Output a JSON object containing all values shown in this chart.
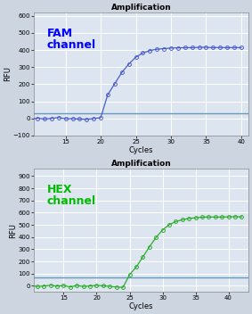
{
  "fam": {
    "title": "Amplification",
    "label": "FAM\nchannel",
    "label_color": "#0000FF",
    "line_color": "#4455CC",
    "marker_color": "#4455CC",
    "threshold_color": "#6699BB",
    "threshold_y": 28,
    "xlim": [
      10.5,
      41
    ],
    "ylim": [
      -100,
      620
    ],
    "xticks": [
      15,
      20,
      25,
      30,
      35,
      40
    ],
    "yticks": [
      -100,
      0,
      100,
      200,
      300,
      400,
      500,
      600
    ],
    "xlabel": "Cycles",
    "ylabel": "RFU",
    "sigmoid_midpoint": 22.0,
    "sigmoid_slope": 0.62,
    "sigmoid_ylow": -8,
    "sigmoid_yhigh": 415
  },
  "hex": {
    "title": "Amplification",
    "label": "HEX\nchannel",
    "label_color": "#00BB00",
    "line_color": "#22AA22",
    "marker_color": "#22AA22",
    "threshold_color": "#6699BB",
    "threshold_y": 72,
    "xlim": [
      10.5,
      43
    ],
    "ylim": [
      -50,
      960
    ],
    "xticks": [
      15,
      20,
      25,
      30,
      35,
      40
    ],
    "yticks": [
      0,
      100,
      200,
      300,
      400,
      500,
      600,
      700,
      800,
      900
    ],
    "xlabel": "Cycles",
    "ylabel": "RFU",
    "sigmoid_midpoint": 27.5,
    "sigmoid_slope": 0.6,
    "sigmoid_ylow": -12,
    "sigmoid_yhigh": 565
  },
  "fig_bg_color": "#CDD5E0",
  "plot_bg_color": "#DDE5F0",
  "grid_color": "#FFFFFF",
  "title_fontsize": 6.5,
  "axis_label_fontsize": 6,
  "tick_fontsize": 5,
  "channel_label_fontsize": 9
}
